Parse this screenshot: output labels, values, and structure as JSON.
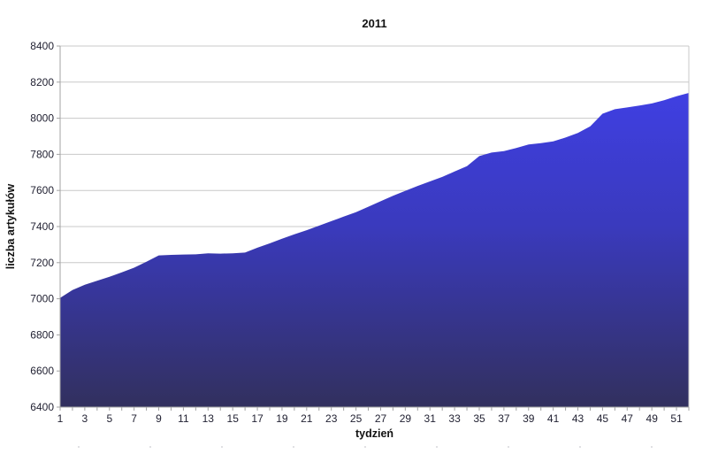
{
  "chart_data": {
    "type": "area",
    "title": "2011",
    "xlabel": "tydzień",
    "ylabel": "liczba artykułów",
    "ylim": [
      6400,
      8400
    ],
    "y_tick_step": 200,
    "y_ticks": [
      8400,
      8200,
      8000,
      7800,
      7600,
      7400,
      7200,
      7000,
      6800,
      6600,
      6400
    ],
    "x_ticks_labeled": [
      1,
      3,
      5,
      7,
      9,
      11,
      13,
      15,
      17,
      19,
      21,
      23,
      25,
      27,
      29,
      31,
      33,
      35,
      37,
      39,
      41,
      43,
      45,
      47,
      49,
      51
    ],
    "weeks": 52,
    "series": [
      {
        "name": "liczba artykułów",
        "values": [
          7005,
          7048,
          7078,
          7100,
          7122,
          7146,
          7172,
          7205,
          7240,
          7243,
          7245,
          7246,
          7252,
          7250,
          7252,
          7256,
          7283,
          7307,
          7333,
          7357,
          7380,
          7405,
          7430,
          7455,
          7480,
          7510,
          7540,
          7570,
          7598,
          7625,
          7650,
          7675,
          7705,
          7735,
          7790,
          7810,
          7818,
          7835,
          7855,
          7862,
          7872,
          7893,
          7918,
          7955,
          8025,
          8050,
          8060,
          8070,
          8082,
          8100,
          8122,
          8140
        ]
      }
    ],
    "grid": "horizontal",
    "legend": "none",
    "colors": {
      "fill_top": "#4444EC",
      "fill_upper": "#3F3FE0",
      "fill_mid": "#3A3ABD",
      "fill_bottom": "#32305E",
      "gridline": "#c8c8c8",
      "axis": "#a3a3a3",
      "tick": "#a3a3a3",
      "text": "#222233",
      "title_text": "#111111"
    }
  }
}
